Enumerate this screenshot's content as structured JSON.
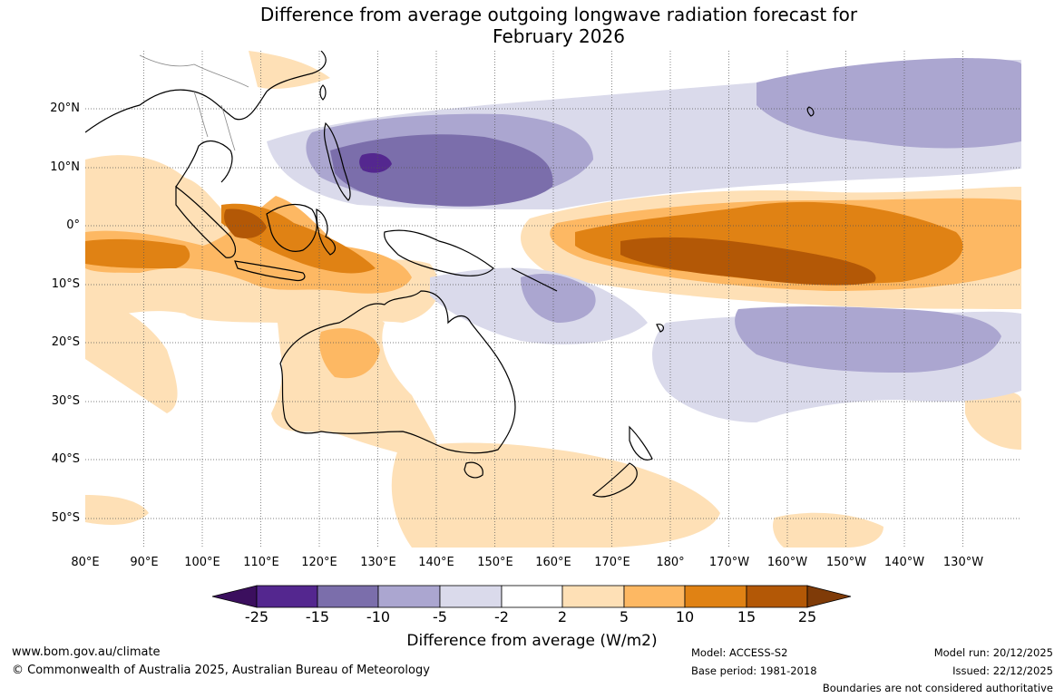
{
  "title": {
    "line1": "Difference from average outgoing longwave radiation forecast for",
    "line2": "February 2026"
  },
  "map": {
    "lat_labels": [
      "20°N",
      "10°N",
      "0°",
      "10°S",
      "20°S",
      "30°S",
      "40°S",
      "50°S"
    ],
    "lon_labels": [
      "80°E",
      "90°E",
      "100°E",
      "110°E",
      "120°E",
      "130°E",
      "140°E",
      "150°E",
      "160°E",
      "170°E",
      "180°",
      "170°W",
      "160°W",
      "150°W",
      "140°W",
      "130°W"
    ]
  },
  "colorbar": {
    "ticks": [
      "-25",
      "-15",
      "-10",
      "-5",
      "-2",
      "2",
      "5",
      "10",
      "15",
      "25"
    ],
    "colors": [
      "#3b0f5e",
      "#54278f",
      "#7b6eab",
      "#aba6d0",
      "#dadaeb",
      "#ffffff",
      "#fee0b6",
      "#fdb863",
      "#e08214",
      "#b35806",
      "#7f3b08"
    ],
    "label": "Difference from average (W/m2)"
  },
  "footer": {
    "website": "www.bom.gov.au/climate",
    "copyright": "© Commonwealth of Australia 2025, Australian Bureau of Meteorology",
    "model": "Model: ACCESS-S2",
    "base_period": "Base period: 1981-2018",
    "model_run": "Model run: 20/12/2025",
    "issued": "Issued: 22/12/2025",
    "disclaimer": "Boundaries are not considered authoritative"
  }
}
